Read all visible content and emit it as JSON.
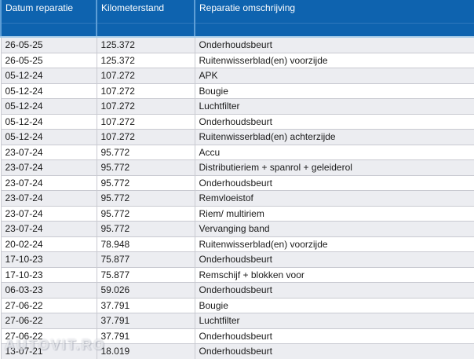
{
  "table": {
    "columns": [
      {
        "label": "Datum reparatie"
      },
      {
        "label": "Kilometerstand"
      },
      {
        "label": "Reparatie omschrijving"
      }
    ],
    "rows": [
      [
        "26-05-25",
        "125.372",
        "Onderhoudsbeurt"
      ],
      [
        "26-05-25",
        "125.372",
        "Ruitenwisserblad(en) voorzijde"
      ],
      [
        "05-12-24",
        "107.272",
        "APK"
      ],
      [
        "05-12-24",
        "107.272",
        "Bougie"
      ],
      [
        "05-12-24",
        "107.272",
        "Luchtfilter"
      ],
      [
        "05-12-24",
        "107.272",
        "Onderhoudsbeurt"
      ],
      [
        "05-12-24",
        "107.272",
        "Ruitenwisserblad(en) achterzijde"
      ],
      [
        "23-07-24",
        "95.772",
        "Accu"
      ],
      [
        "23-07-24",
        "95.772",
        "Distributieriem + spanrol + geleiderol"
      ],
      [
        "23-07-24",
        "95.772",
        "Onderhoudsbeurt"
      ],
      [
        "23-07-24",
        "95.772",
        "Remvloeistof"
      ],
      [
        "23-07-24",
        "95.772",
        "Riem/ multiriem"
      ],
      [
        "23-07-24",
        "95.772",
        "Vervanging band"
      ],
      [
        "20-02-24",
        "78.948",
        "Ruitenwisserblad(en) voorzijde"
      ],
      [
        "17-10-23",
        "75.877",
        "Onderhoudsbeurt"
      ],
      [
        "17-10-23",
        "75.877",
        "Remschijf + blokken voor"
      ],
      [
        "06-03-23",
        "59.026",
        "Onderhoudsbeurt"
      ],
      [
        "27-06-22",
        "37.791",
        "Bougie"
      ],
      [
        "27-06-22",
        "37.791",
        "Luchtfilter"
      ],
      [
        "27-06-22",
        "37.791",
        "Onderhoudsbeurt"
      ],
      [
        "13-07-21",
        "18.019",
        "Onderhoudsbeurt"
      ]
    ]
  },
  "watermark": {
    "text": "AUTOVIT.RO"
  },
  "colors": {
    "header_bg": "#0e63af",
    "header_text": "#ffffff",
    "header_divider": "#5e9ed6",
    "header_bottom_border": "#a6cce9",
    "row_alt_bg": "#ecedf1",
    "row_bg": "#ffffff",
    "grid_line": "#c9cad1",
    "cell_text": "#1b1b1b"
  }
}
